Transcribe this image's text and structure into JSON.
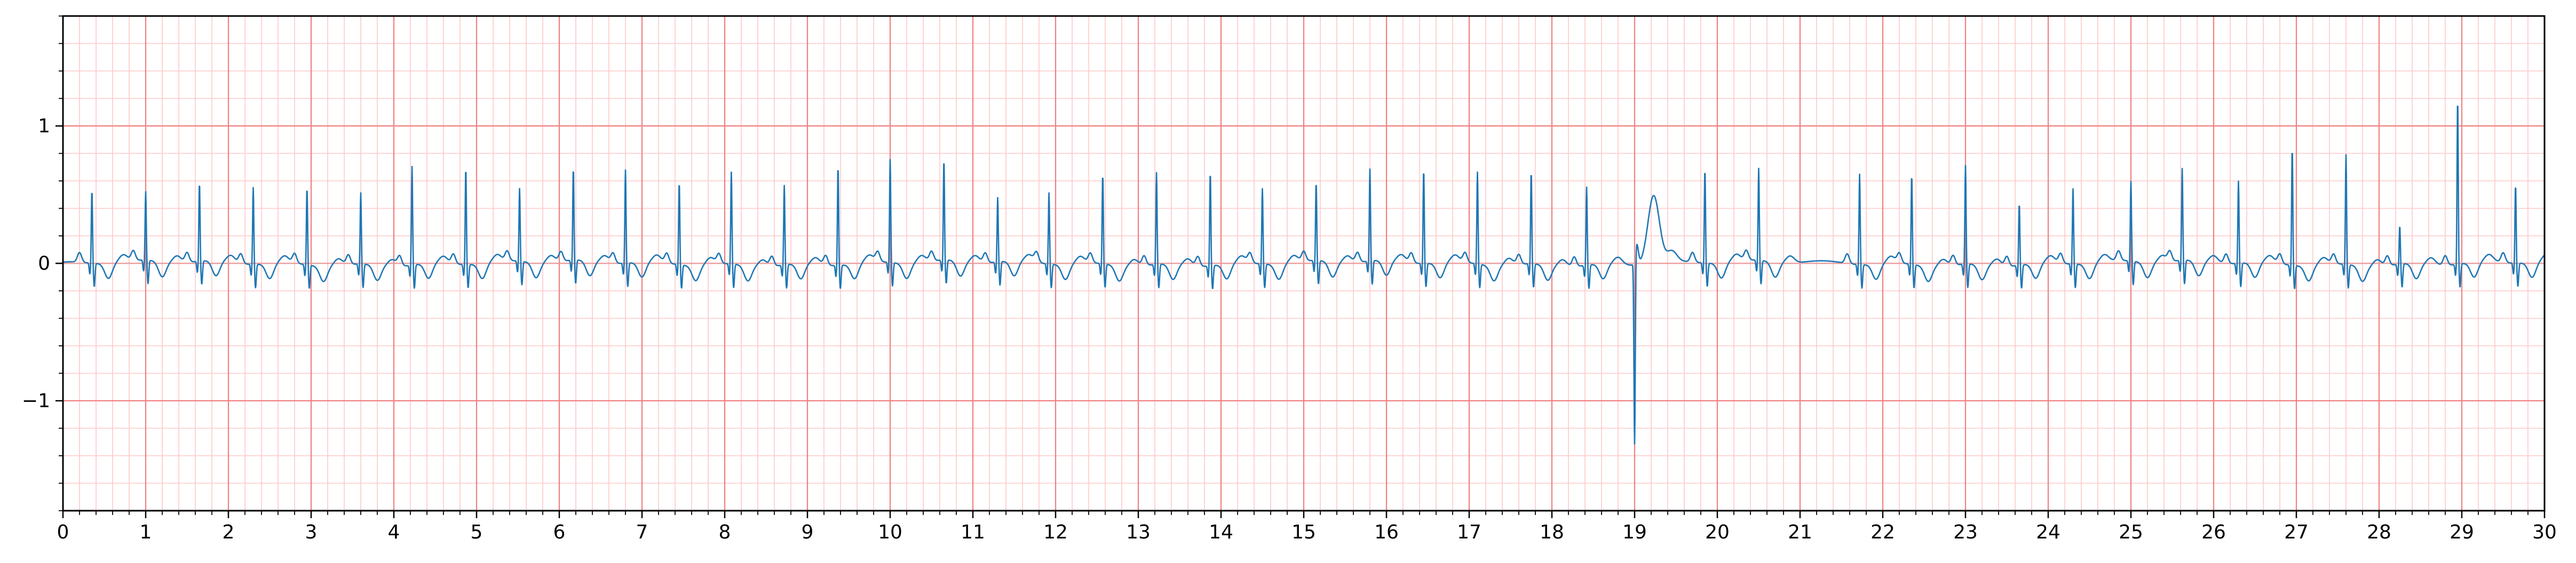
{
  "chart_data": {
    "type": "line",
    "title": "",
    "xlabel": "",
    "ylabel": "",
    "xlim": [
      0,
      30
    ],
    "ylim": [
      -1.8,
      1.8
    ],
    "grid": true,
    "grid_major_x": 1,
    "grid_major_y": 1,
    "grid_minor": 0.2,
    "x_ticks": [
      "0",
      "1",
      "2",
      "3",
      "4",
      "5",
      "6",
      "7",
      "8",
      "9",
      "10",
      "11",
      "12",
      "13",
      "14",
      "15",
      "16",
      "17",
      "18",
      "19",
      "20",
      "21",
      "22",
      "23",
      "24",
      "25",
      "26",
      "27",
      "28",
      "29",
      "30"
    ],
    "y_ticks": [
      "−1",
      "0",
      "1"
    ],
    "y_tick_values": [
      -1,
      0,
      1
    ],
    "colors": {
      "trace": "#1f77b4",
      "grid_major": "#f08080",
      "grid_minor": "#ffc8c8",
      "axes": "#000000"
    },
    "beats": [
      {
        "t": 0.35,
        "r": 0.53
      },
      {
        "t": 1.0,
        "r": 0.5
      },
      {
        "t": 1.65,
        "r": 0.57
      },
      {
        "t": 2.3,
        "r": 0.56
      },
      {
        "t": 2.95,
        "r": 0.56
      },
      {
        "t": 3.6,
        "r": 0.52
      },
      {
        "t": 4.22,
        "r": 0.72
      },
      {
        "t": 4.87,
        "r": 0.7
      },
      {
        "t": 5.52,
        "r": 0.53
      },
      {
        "t": 6.17,
        "r": 0.67
      },
      {
        "t": 6.8,
        "r": 0.68
      },
      {
        "t": 7.45,
        "r": 0.6
      },
      {
        "t": 8.08,
        "r": 0.67
      },
      {
        "t": 8.72,
        "r": 0.58
      },
      {
        "t": 9.37,
        "r": 0.72
      },
      {
        "t": 10.0,
        "r": 0.75
      },
      {
        "t": 10.65,
        "r": 0.73
      },
      {
        "t": 11.3,
        "r": 0.47
      },
      {
        "t": 11.92,
        "r": 0.52
      },
      {
        "t": 12.57,
        "r": 0.65
      },
      {
        "t": 13.22,
        "r": 0.67
      },
      {
        "t": 13.87,
        "r": 0.68
      },
      {
        "t": 14.5,
        "r": 0.55
      },
      {
        "t": 15.15,
        "r": 0.57
      },
      {
        "t": 15.8,
        "r": 0.67
      },
      {
        "t": 16.45,
        "r": 0.68
      },
      {
        "t": 17.1,
        "r": 0.67
      },
      {
        "t": 17.75,
        "r": 0.67
      },
      {
        "t": 18.42,
        "r": 0.57
      },
      {
        "t": 19.85,
        "r": 0.68
      },
      {
        "t": 20.5,
        "r": 0.67
      },
      {
        "t": 21.72,
        "r": 0.66
      },
      {
        "t": 22.35,
        "r": 0.65
      },
      {
        "t": 23.0,
        "r": 0.72
      },
      {
        "t": 23.65,
        "r": 0.45
      },
      {
        "t": 24.3,
        "r": 0.55
      },
      {
        "t": 25.0,
        "r": 0.58
      },
      {
        "t": 25.62,
        "r": 0.67
      },
      {
        "t": 26.3,
        "r": 0.6
      },
      {
        "t": 26.95,
        "r": 0.85
      },
      {
        "t": 27.6,
        "r": 0.8
      },
      {
        "t": 28.25,
        "r": 0.28
      },
      {
        "t": 28.95,
        "r": 1.2
      },
      {
        "t": 29.65,
        "r": 0.57
      }
    ],
    "ectopic_beat": {
      "t": 19.0,
      "min": -1.37,
      "peak": 0.5
    }
  }
}
